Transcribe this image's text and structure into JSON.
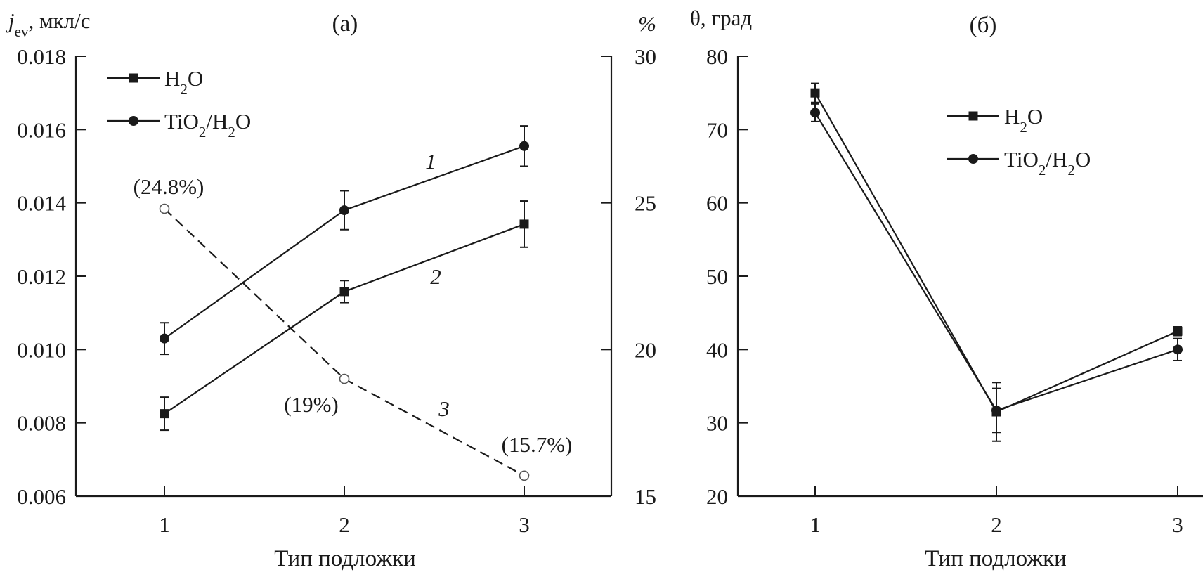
{
  "chart_data": [
    {
      "type": "line",
      "title": "(а)",
      "xlabel": "Тип подложки",
      "ylabel_prefix": "j",
      "ylabel_sub": "ev",
      "ylabel_suffix": ", мкл/с",
      "y2label": "%",
      "categories": [
        "1",
        "2",
        "3"
      ],
      "ylim": [
        0.006,
        0.018
      ],
      "yticks": [
        "0.006",
        "0.008",
        "0.010",
        "0.012",
        "0.014",
        "0.016",
        "0.018"
      ],
      "y2lim": [
        15,
        30
      ],
      "y2ticks": [
        "15",
        "20",
        "25",
        "30"
      ],
      "legend_position": "top-left",
      "legend": [
        {
          "marker": "square",
          "label": "H",
          "sub": "2",
          "label2": "O"
        },
        {
          "marker": "circle",
          "label": "TiO",
          "sub": "2",
          "label2": "/H",
          "sub2": "2",
          "label3": "O"
        }
      ],
      "series": [
        {
          "name": "TiO2/H2O",
          "curve_label": "1",
          "marker": "circle",
          "axis": "left",
          "values": [
            0.0103,
            0.0138,
            0.01555
          ],
          "errors": [
            0.00043,
            0.00053,
            0.00055
          ]
        },
        {
          "name": "H2O",
          "curve_label": "2",
          "marker": "square",
          "axis": "left",
          "values": [
            0.00825,
            0.01158,
            0.01342
          ],
          "errors": [
            0.00045,
            0.0003,
            0.00063
          ]
        },
        {
          "name": "%",
          "curve_label": "3",
          "marker": "open-circle",
          "axis": "right",
          "dashed": true,
          "values": [
            24.8,
            19,
            15.7
          ],
          "point_labels": [
            "(24.8%)",
            "(19%)",
            "(15.7%)"
          ]
        }
      ],
      "grid": false
    },
    {
      "type": "line",
      "title": "(б)",
      "xlabel": "Тип подложки",
      "ylabel": "θ, град",
      "categories": [
        "1",
        "2",
        "3"
      ],
      "ylim": [
        20,
        80
      ],
      "yticks": [
        "20",
        "30",
        "40",
        "50",
        "60",
        "70",
        "80"
      ],
      "legend_position": "top-right",
      "legend": [
        {
          "marker": "square",
          "label": "H",
          "sub": "2",
          "label2": "O"
        },
        {
          "marker": "circle",
          "label": "TiO",
          "sub": "2",
          "label2": "/H",
          "sub2": "2",
          "label3": "O"
        }
      ],
      "series": [
        {
          "name": "H2O",
          "marker": "square",
          "values": [
            75,
            31.5,
            42.5
          ],
          "errors": [
            1.3,
            4,
            0.6
          ]
        },
        {
          "name": "TiO2/H2O",
          "marker": "circle",
          "values": [
            72.3,
            31.7,
            40
          ],
          "errors": [
            1.2,
            3,
            1.5
          ]
        }
      ],
      "grid": false
    }
  ]
}
